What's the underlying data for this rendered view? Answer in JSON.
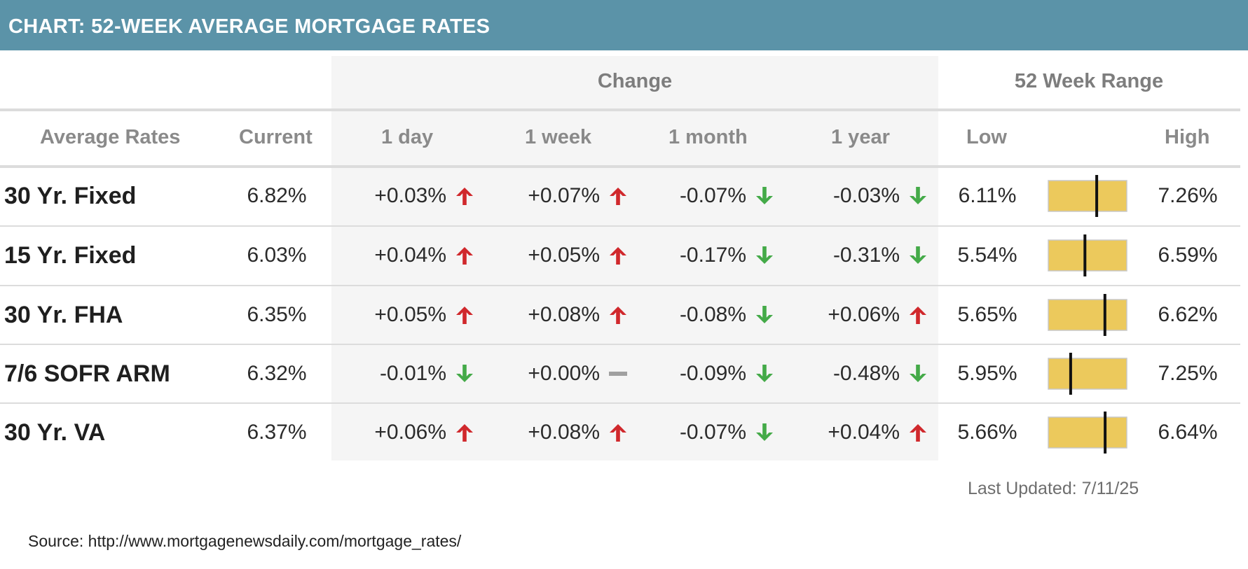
{
  "header": {
    "title": "CHART: 52-WEEK AVERAGE MORTGAGE RATES"
  },
  "groups": {
    "change": "Change",
    "range": "52 Week Range"
  },
  "columns": {
    "average_rates": "Average Rates",
    "current": "Current",
    "day": "1 day",
    "week": "1 week",
    "month": "1 month",
    "year": "1 year",
    "low": "Low",
    "high": "High"
  },
  "colors": {
    "header": "#5b93a8",
    "up": "#d0282c",
    "down": "#44aa48",
    "flat": "#a0a0a0",
    "range_fill": "#ecc95c"
  },
  "chart_data": {
    "type": "table",
    "rows": [
      {
        "name": "30 Yr. Fixed",
        "current": "6.82%",
        "current_value": 6.82,
        "day": "+0.03%",
        "day_dir": "up",
        "week": "+0.07%",
        "week_dir": "up",
        "month": "-0.07%",
        "month_dir": "down",
        "year": "-0.03%",
        "year_dir": "down",
        "low": "6.11%",
        "low_value": 6.11,
        "high": "7.26%",
        "high_value": 7.26
      },
      {
        "name": "15 Yr. Fixed",
        "current": "6.03%",
        "current_value": 6.03,
        "day": "+0.04%",
        "day_dir": "up",
        "week": "+0.05%",
        "week_dir": "up",
        "month": "-0.17%",
        "month_dir": "down",
        "year": "-0.31%",
        "year_dir": "down",
        "low": "5.54%",
        "low_value": 5.54,
        "high": "6.59%",
        "high_value": 6.59
      },
      {
        "name": "30 Yr. FHA",
        "current": "6.35%",
        "current_value": 6.35,
        "day": "+0.05%",
        "day_dir": "up",
        "week": "+0.08%",
        "week_dir": "up",
        "month": "-0.08%",
        "month_dir": "down",
        "year": "+0.06%",
        "year_dir": "up",
        "low": "5.65%",
        "low_value": 5.65,
        "high": "6.62%",
        "high_value": 6.62
      },
      {
        "name": "7/6 SOFR ARM",
        "current": "6.32%",
        "current_value": 6.32,
        "day": "-0.01%",
        "day_dir": "down",
        "week": "+0.00%",
        "week_dir": "flat",
        "month": "-0.09%",
        "month_dir": "down",
        "year": "-0.48%",
        "year_dir": "down",
        "low": "5.95%",
        "low_value": 5.95,
        "high": "7.25%",
        "high_value": 7.25
      },
      {
        "name": "30 Yr. VA",
        "current": "6.37%",
        "current_value": 6.37,
        "day": "+0.06%",
        "day_dir": "up",
        "week": "+0.08%",
        "week_dir": "up",
        "month": "-0.07%",
        "month_dir": "down",
        "year": "+0.04%",
        "year_dir": "up",
        "low": "5.66%",
        "low_value": 5.66,
        "high": "6.64%",
        "high_value": 6.64
      }
    ]
  },
  "footer": {
    "last_updated": "Last Updated: 7/11/25",
    "source": "Source: http://www.mortgagenewsdaily.com/mortgage_rates/"
  }
}
